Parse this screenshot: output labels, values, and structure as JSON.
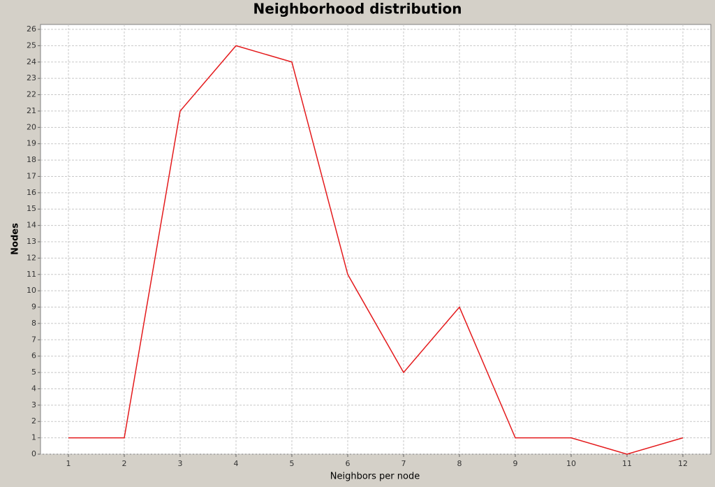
{
  "chart_data": {
    "type": "line",
    "title": "Neighborhood distribution",
    "x_label": "Neighbors per node",
    "y_label": "Nodes",
    "x": [
      1,
      2,
      3,
      4,
      5,
      6,
      7,
      8,
      9,
      10,
      11,
      12
    ],
    "series": [
      {
        "color": "#e41a1c",
        "values": [
          1,
          1,
          21,
          25,
          24,
          11,
          5,
          9,
          1,
          1,
          0,
          1
        ]
      }
    ],
    "xlim": [
      0.5,
      12.5
    ],
    "xticks": [
      1,
      2,
      3,
      4,
      5,
      6,
      7,
      8,
      9,
      10,
      11,
      12
    ],
    "ylim": [
      0,
      26.3
    ],
    "yticks": [
      0,
      1,
      2,
      3,
      4,
      5,
      6,
      7,
      8,
      9,
      10,
      11,
      12,
      13,
      14,
      15,
      16,
      17,
      18,
      19,
      20,
      21,
      22,
      23,
      24,
      25,
      26
    ],
    "grid": true
  }
}
